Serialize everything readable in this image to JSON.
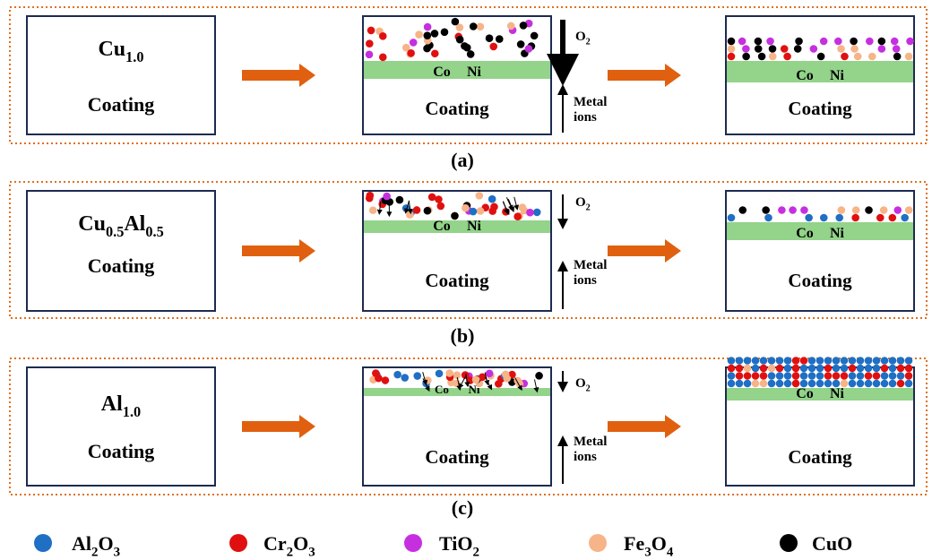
{
  "panels": [
    {
      "coating": [
        {
          "text": "Cu"
        },
        {
          "sub": "1.0"
        }
      ],
      "coating_word": "Coating",
      "co": "Co",
      "ni": "Ni",
      "o2": [
        {
          "text": "O"
        },
        {
          "sub": "2"
        }
      ],
      "metal": "Metal",
      "ions": "ions",
      "caption": "(a)"
    },
    {
      "coating": [
        {
          "text": "Cu"
        },
        {
          "sub": "0.5"
        },
        {
          "text": "Al"
        },
        {
          "sub": "0.5"
        }
      ],
      "coating_word": "Coating",
      "co": "Co",
      "ni": "Ni",
      "o2": [
        {
          "text": "O"
        },
        {
          "sub": "2"
        }
      ],
      "metal": "Metal",
      "ions": "ions",
      "caption": "(b)"
    },
    {
      "coating": [
        {
          "text": "Al"
        },
        {
          "sub": "1.0"
        }
      ],
      "coating_word": "Coating",
      "co": "Co",
      "ni": "Ni",
      "o2": [
        {
          "text": "O"
        },
        {
          "sub": "2"
        }
      ],
      "metal": "Metal",
      "ions": "ions",
      "caption": "(c)"
    }
  ],
  "legend": [
    {
      "formula": [
        {
          "text": "Al"
        },
        {
          "sub": "2"
        },
        {
          "text": "O"
        },
        {
          "sub": "3"
        }
      ],
      "color": "#1f6fc4"
    },
    {
      "formula": [
        {
          "text": "Cr"
        },
        {
          "sub": "2"
        },
        {
          "text": "O"
        },
        {
          "sub": "3"
        }
      ],
      "color": "#e01010"
    },
    {
      "formula": [
        {
          "text": "TiO"
        },
        {
          "sub": "2"
        }
      ],
      "color": "#c62fe0"
    },
    {
      "formula": [
        {
          "text": "Fe"
        },
        {
          "sub": "3"
        },
        {
          "text": "O"
        },
        {
          "sub": "4"
        }
      ],
      "color": "#f6b488"
    },
    {
      "formula": [
        {
          "text": "CuO"
        }
      ],
      "color": "#000000"
    }
  ]
}
